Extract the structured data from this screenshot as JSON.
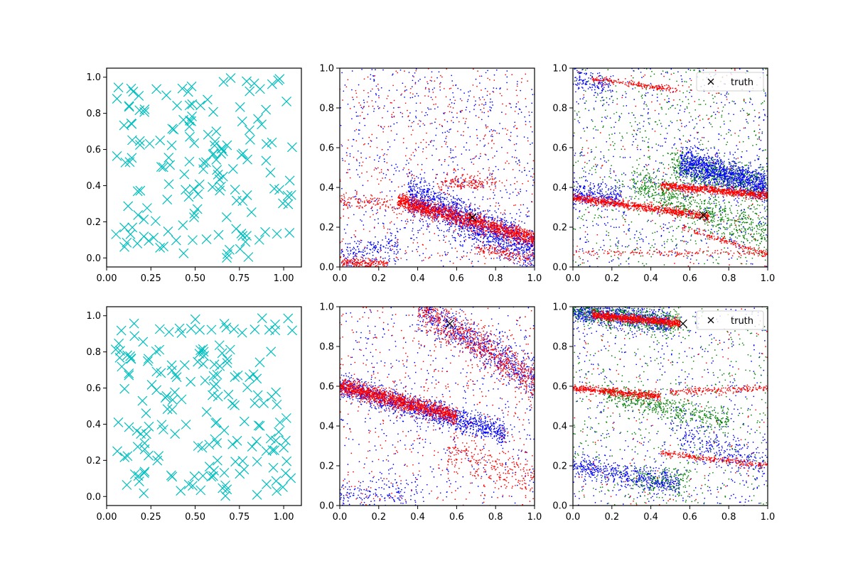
{
  "chart_data": [
    {
      "panel": "top-left",
      "type": "scatter",
      "marker": "x",
      "color": "#00bfbf",
      "xlim": [
        -0.05,
        1.05
      ],
      "ylim": [
        -0.05,
        1.05
      ],
      "xticks": [
        "0.00",
        "0.25",
        "0.50",
        "0.75",
        "1.00"
      ],
      "yticks": [
        "0.0",
        "0.2",
        "0.4",
        "0.6",
        "0.8",
        "1.0"
      ],
      "seed": 11,
      "n_points": 160,
      "grid": false,
      "legend": null
    },
    {
      "panel": "top-middle",
      "type": "scatter",
      "marker": "dot",
      "xlim": [
        0,
        1
      ],
      "ylim": [
        0,
        1
      ],
      "xticks": [
        "0.0",
        "0.2",
        "0.4",
        "0.6",
        "0.8",
        "1.0"
      ],
      "yticks": [
        "0.0",
        "0.2",
        "0.4",
        "0.6",
        "0.8",
        "1.0"
      ],
      "truth": {
        "x": 0.68,
        "y": 0.25,
        "marker": "x",
        "color": "#000000"
      },
      "series": [
        {
          "color": "#0000ff",
          "seed": 21,
          "uniform": 700,
          "bands": [
            {
              "x": [
                0.35,
                1.0
              ],
              "c": 0.52,
              "m": -0.44,
              "sd": 0.05,
              "n": 1500
            },
            {
              "x": [
                0.0,
                0.3
              ],
              "c": 0.05,
              "m": 0.2,
              "sd": 0.04,
              "n": 180
            }
          ]
        },
        {
          "color": "#ff0000",
          "seed": 22,
          "uniform": 500,
          "bands": [
            {
              "x": [
                0.3,
                1.0
              ],
              "c": 0.42,
              "m": -0.28,
              "sd": 0.02,
              "n": 1400
            },
            {
              "x": [
                0.0,
                0.4
              ],
              "c": 0.34,
              "m": -0.1,
              "sd": 0.02,
              "n": 150
            },
            {
              "x": [
                0.5,
                0.8
              ],
              "c": 0.42,
              "m": 0.0,
              "sd": 0.02,
              "n": 150
            },
            {
              "x": [
                0.0,
                0.25
              ],
              "c": 0.02,
              "m": 0.0,
              "sd": 0.012,
              "n": 180
            },
            {
              "x": [
                0.7,
                1.0
              ],
              "c": 0.22,
              "m": -0.18,
              "sd": 0.015,
              "n": 140
            }
          ]
        }
      ],
      "grid": false
    },
    {
      "panel": "top-right",
      "type": "scatter",
      "marker": "dot",
      "xlim": [
        0,
        1
      ],
      "ylim": [
        0,
        1
      ],
      "xticks": [
        "0.0",
        "0.2",
        "0.4",
        "0.6",
        "0.8",
        "1.0"
      ],
      "yticks": [
        "0.0",
        "0.2",
        "0.4",
        "0.6",
        "0.8",
        "1.0"
      ],
      "truth": {
        "x": 0.67,
        "y": 0.26,
        "marker": "x",
        "color": "#000000"
      },
      "legend": {
        "label": "truth",
        "placement": "upper right"
      },
      "series": [
        {
          "color": "#008000",
          "seed": 31,
          "uniform": 650,
          "bands": [
            {
              "x": [
                0.3,
                1.0
              ],
              "c": 0.55,
              "m": -0.4,
              "sd": 0.05,
              "n": 700
            },
            {
              "x": [
                0.5,
                1.0
              ],
              "c": 0.62,
              "m": -0.22,
              "sd": 0.04,
              "n": 600
            }
          ]
        },
        {
          "color": "#0000ff",
          "seed": 32,
          "uniform": 650,
          "bands": [
            {
              "x": [
                0.55,
                1.0
              ],
              "c": 0.67,
              "m": -0.26,
              "sd": 0.04,
              "n": 1200
            },
            {
              "x": [
                0.0,
                0.25
              ],
              "c": 0.37,
              "m": -0.08,
              "sd": 0.03,
              "n": 250
            },
            {
              "x": [
                0.0,
                0.2
              ],
              "c": 0.95,
              "m": -0.2,
              "sd": 0.03,
              "n": 120
            }
          ]
        },
        {
          "color": "#ff0000",
          "seed": 33,
          "uniform": 150,
          "bands": [
            {
              "x": [
                0.0,
                0.7
              ],
              "c": 0.35,
              "m": -0.14,
              "sd": 0.01,
              "n": 800
            },
            {
              "x": [
                0.45,
                1.0
              ],
              "c": 0.45,
              "m": -0.09,
              "sd": 0.01,
              "n": 750
            },
            {
              "x": [
                0.1,
                0.55
              ],
              "c": 0.96,
              "m": -0.13,
              "sd": 0.008,
              "n": 200
            },
            {
              "x": [
                0.0,
                1.0
              ],
              "c": 0.07,
              "m": 0.0,
              "sd": 0.008,
              "n": 160
            },
            {
              "x": [
                0.55,
                1.0
              ],
              "c": 0.38,
              "m": -0.32,
              "sd": 0.008,
              "n": 160
            }
          ]
        }
      ],
      "grid": false
    },
    {
      "panel": "bottom-left",
      "type": "scatter",
      "marker": "x",
      "color": "#00bfbf",
      "xlim": [
        -0.05,
        1.05
      ],
      "ylim": [
        -0.05,
        1.05
      ],
      "xticks": [
        "0.00",
        "0.25",
        "0.50",
        "0.75",
        "1.00"
      ],
      "yticks": [
        "0.0",
        "0.2",
        "0.4",
        "0.6",
        "0.8",
        "1.0"
      ],
      "seed": 17,
      "n_points": 180,
      "grid": false,
      "legend": null
    },
    {
      "panel": "bottom-middle",
      "type": "scatter",
      "marker": "dot",
      "xlim": [
        0,
        1
      ],
      "ylim": [
        0,
        1
      ],
      "xticks": [
        "0.0",
        "0.2",
        "0.4",
        "0.6",
        "0.8",
        "1.0"
      ],
      "yticks": [
        "0.0",
        "0.2",
        "0.4",
        "0.6",
        "0.8",
        "1.0"
      ],
      "truth": {
        "x": 0.565,
        "y": 0.915,
        "marker": "x",
        "color": "#000000"
      },
      "series": [
        {
          "color": "#0000ff",
          "seed": 41,
          "uniform": 500,
          "bands": [
            {
              "x": [
                0.0,
                0.85
              ],
              "c": 0.6,
              "m": -0.28,
              "sd": 0.03,
              "n": 1300
            },
            {
              "x": [
                0.4,
                1.0
              ],
              "c": 1.25,
              "m": -0.62,
              "sd": 0.05,
              "n": 700
            },
            {
              "x": [
                0.0,
                0.4
              ],
              "c": 0.06,
              "m": 0.0,
              "sd": 0.04,
              "n": 150
            }
          ]
        },
        {
          "color": "#ff0000",
          "seed": 42,
          "uniform": 450,
          "bands": [
            {
              "x": [
                0.0,
                0.6
              ],
              "c": 0.6,
              "m": -0.25,
              "sd": 0.02,
              "n": 1300
            },
            {
              "x": [
                0.4,
                1.0
              ],
              "c": 1.25,
              "m": -0.62,
              "sd": 0.05,
              "n": 700
            },
            {
              "x": [
                0.55,
                1.0
              ],
              "c": 0.45,
              "m": -0.32,
              "sd": 0.05,
              "n": 250
            }
          ]
        }
      ],
      "grid": false
    },
    {
      "panel": "bottom-right",
      "type": "scatter",
      "marker": "dot",
      "xlim": [
        0,
        1
      ],
      "ylim": [
        0,
        1
      ],
      "xticks": [
        "0.0",
        "0.2",
        "0.4",
        "0.6",
        "0.8",
        "1.0"
      ],
      "yticks": [
        "0.0",
        "0.2",
        "0.4",
        "0.6",
        "0.8",
        "1.0"
      ],
      "truth": {
        "x": 0.565,
        "y": 0.915,
        "marker": "x",
        "color": "#000000"
      },
      "legend": {
        "label": "truth",
        "placement": "upper right"
      },
      "series": [
        {
          "color": "#0000ff",
          "seed": 51,
          "uniform": 550,
          "bands": [
            {
              "x": [
                0.0,
                0.5
              ],
              "c": 0.98,
              "m": -0.12,
              "sd": 0.03,
              "n": 800
            },
            {
              "x": [
                0.0,
                0.55
              ],
              "c": 0.2,
              "m": -0.18,
              "sd": 0.03,
              "n": 550
            },
            {
              "x": [
                0.55,
                1.0
              ],
              "c": 0.55,
              "m": -0.35,
              "sd": 0.05,
              "n": 300
            }
          ]
        },
        {
          "color": "#008000",
          "seed": 52,
          "uniform": 500,
          "bands": [
            {
              "x": [
                0.0,
                0.55
              ],
              "c": 0.98,
              "m": -0.12,
              "sd": 0.03,
              "n": 500
            },
            {
              "x": [
                0.15,
                0.8
              ],
              "c": 0.6,
              "m": -0.22,
              "sd": 0.03,
              "n": 500
            },
            {
              "x": [
                0.3,
                0.6
              ],
              "c": 0.12,
              "m": 0.0,
              "sd": 0.04,
              "n": 150
            }
          ]
        },
        {
          "color": "#ff0000",
          "seed": 53,
          "uniform": 150,
          "bands": [
            {
              "x": [
                0.1,
                0.55
              ],
              "c": 0.97,
              "m": -0.1,
              "sd": 0.01,
              "n": 800
            },
            {
              "x": [
                0.0,
                0.45
              ],
              "c": 0.59,
              "m": -0.09,
              "sd": 0.01,
              "n": 500
            },
            {
              "x": [
                0.45,
                1.0
              ],
              "c": 0.32,
              "m": -0.12,
              "sd": 0.008,
              "n": 250
            },
            {
              "x": [
                0.5,
                1.0
              ],
              "c": 0.55,
              "m": 0.04,
              "sd": 0.008,
              "n": 200
            }
          ]
        }
      ],
      "grid": false
    }
  ]
}
